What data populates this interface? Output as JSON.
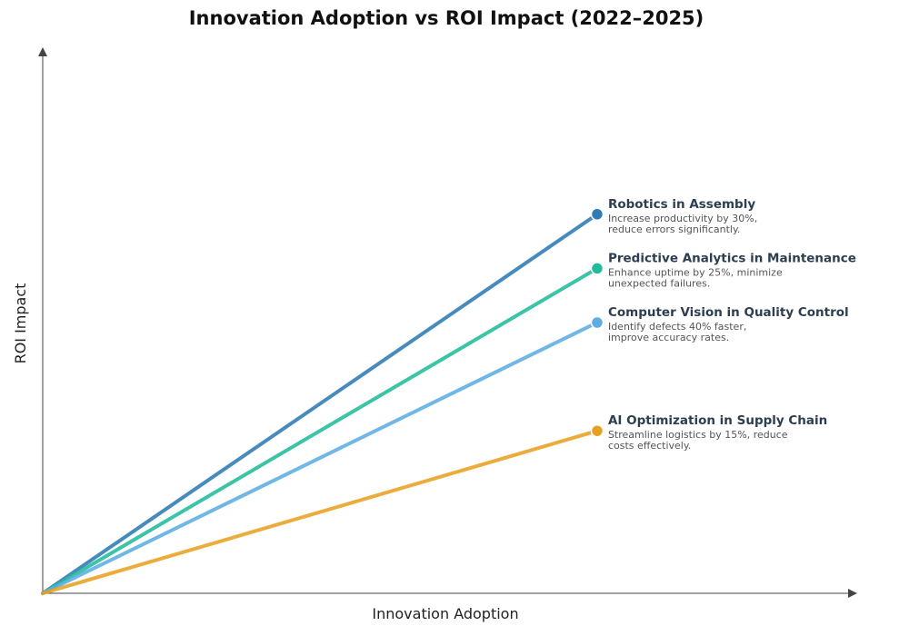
{
  "chart_data": {
    "type": "line",
    "title": "Innovation Adoption vs ROI Impact (2022–2025)",
    "xlabel": "Innovation Adoption",
    "ylabel": "ROI Impact",
    "xlim": [
      0,
      1
    ],
    "ylim": [
      0,
      1
    ],
    "grid": false,
    "legend": "none",
    "series": [
      {
        "name": "Robotics in Assembly",
        "description": [
          "Increase productivity by 30%,",
          "reduce errors significantly."
        ],
        "color": "#2e7bb5",
        "x": [
          0,
          0.69
        ],
        "y": [
          0,
          0.7
        ]
      },
      {
        "name": "Predictive Analytics in Maintenance",
        "description": [
          "Enhance uptime by 25%, minimize",
          "unexpected failures."
        ],
        "color": "#20bc9a",
        "x": [
          0,
          0.69
        ],
        "y": [
          0,
          0.6
        ]
      },
      {
        "name": "Computer Vision in Quality Control",
        "description": [
          "Identify defects 40% faster,",
          "improve accuracy rates."
        ],
        "color": "#5dade2",
        "x": [
          0,
          0.69
        ],
        "y": [
          0,
          0.5
        ]
      },
      {
        "name": "AI Optimization in Supply Chain",
        "description": [
          "Streamline logistics by 15%, reduce",
          "costs effectively."
        ],
        "color": "#e8a020",
        "x": [
          0,
          0.69
        ],
        "y": [
          0,
          0.3
        ]
      }
    ]
  }
}
